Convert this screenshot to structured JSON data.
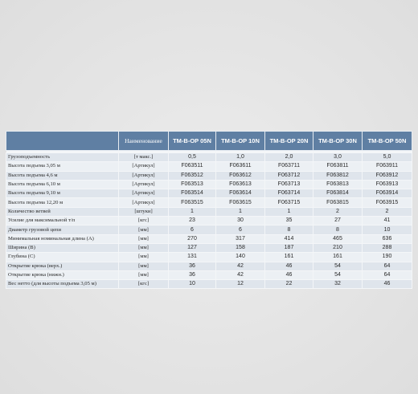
{
  "table": {
    "header": [
      "Наименование",
      "TM-B-OP 05N",
      "TM-B-OP 10N",
      "TM-B-OP 20N",
      "TM-B-OP 30N",
      "TM-B-OP 50N"
    ],
    "rows": [
      [
        "Грузоподъемность",
        "[т макс.]",
        "0,5",
        "1,0",
        "2,0",
        "3,0",
        "5,0"
      ],
      [
        "Высота подъема 3,05 м",
        "[Артикул]",
        "F063511",
        "F063611",
        "F063711",
        "F063811",
        "F063911"
      ],
      [
        "Высота подъема 4,6 м",
        "[Артикул]",
        "F063512",
        "F063612",
        "F063712",
        "F063812",
        "F063912"
      ],
      [
        "Высота подъема 6,10 м",
        "[Артикул]",
        "F063513",
        "F063613",
        "F063713",
        "F063813",
        "F063913"
      ],
      [
        "Высота подъема 9,10 м",
        "[Артикул]",
        "F063514",
        "F063614",
        "F063714",
        "F063814",
        "F063914"
      ],
      [
        "Высота подъема 12,20 м",
        "[Артикул]",
        "F063515",
        "F063615",
        "F063715",
        "F063815",
        "F063915"
      ],
      [
        "Количество ветвей",
        "[штуки]",
        "1",
        "1",
        "1",
        "2",
        "2"
      ],
      [
        "Усилие для максимальной т/п",
        "[кгс]",
        "23",
        "30",
        "35",
        "27",
        "41"
      ],
      [
        "Диаметр грузовой цепи",
        "[мм]",
        "6",
        "6",
        "8",
        "8",
        "10"
      ],
      [
        "Минимальная номинальная длина (A)",
        "[мм]",
        "270",
        "317",
        "414",
        "465",
        "636"
      ],
      [
        "Ширина (B)",
        "[мм]",
        "127",
        "158",
        "187",
        "210",
        "288"
      ],
      [
        "Глубина (C)",
        "[мм]",
        "131",
        "140",
        "161",
        "161",
        "190"
      ],
      [
        "Открытие крюка (верх.)",
        "[мм]",
        "36",
        "42",
        "46",
        "54",
        "64"
      ],
      [
        "Открытие крюка (нижн.)",
        "[мм]",
        "36",
        "42",
        "46",
        "54",
        "64"
      ],
      [
        "Вес нетто (для высоты подъема 3,05 м)",
        "[кгс]",
        "10",
        "12",
        "22",
        "32",
        "46"
      ]
    ]
  }
}
